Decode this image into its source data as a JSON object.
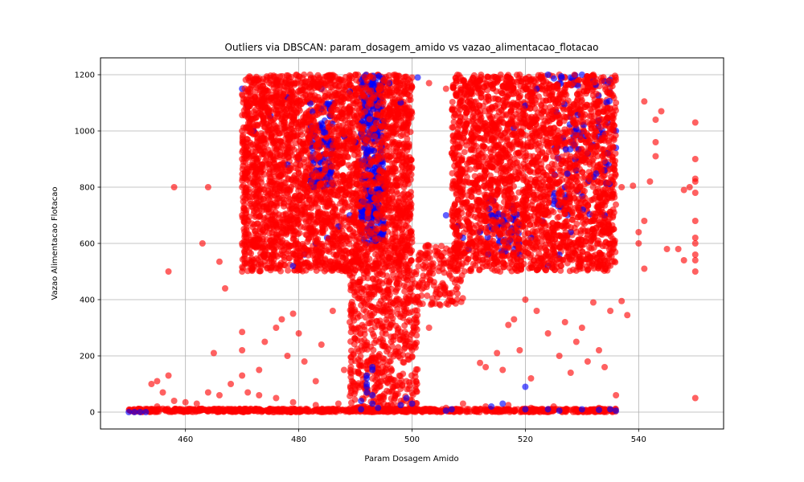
{
  "chart_data": {
    "type": "scatter",
    "title": "Outliers via DBSCAN: param_dosagem_amido vs vazao_alimentacao_flotacao",
    "xlabel": "Param Dosagem Amido",
    "ylabel": "Vazao Alimentacao Flotacao",
    "xlim": [
      445,
      555
    ],
    "ylim": [
      -60,
      1260
    ],
    "xticks": [
      460,
      480,
      500,
      520,
      540
    ],
    "yticks": [
      0,
      200,
      400,
      600,
      800,
      1000,
      1200
    ],
    "grid": true,
    "legend": "none",
    "colors": {
      "outlier": "#ff0000",
      "cluster": "#0000ff"
    },
    "series": [
      {
        "values": [
          [
            470,
            1130
          ],
          [
            472,
            1100
          ],
          [
            475,
            1180
          ],
          [
            478,
            1160
          ],
          [
            482,
            1200
          ],
          [
            486,
            1190
          ],
          [
            490,
            1200
          ],
          [
            494,
            1200
          ],
          [
            497,
            1200
          ],
          [
            500,
            1190
          ],
          [
            503,
            1170
          ],
          [
            506,
            1150
          ],
          [
            510,
            1140
          ],
          [
            513,
            1170
          ],
          [
            516,
            1160
          ],
          [
            519,
            1200
          ],
          [
            523,
            1190
          ],
          [
            526,
            1200
          ],
          [
            529,
            1180
          ],
          [
            532,
            1200
          ],
          [
            535,
            1170
          ],
          [
            536,
            1100
          ],
          [
            470,
            1000
          ],
          [
            470,
            900
          ],
          [
            470,
            800
          ],
          [
            470,
            700
          ],
          [
            470,
            600
          ],
          [
            470,
            500
          ],
          [
            470,
            285
          ],
          [
            470,
            220
          ],
          [
            470,
            130
          ],
          [
            471,
            70
          ],
          [
            473,
            60
          ],
          [
            476,
            50
          ],
          [
            479,
            35
          ],
          [
            483,
            25
          ],
          [
            487,
            30
          ],
          [
            491,
            20
          ],
          [
            495,
            30
          ],
          [
            498,
            40
          ],
          [
            502,
            10
          ],
          [
            506,
            15
          ],
          [
            509,
            30
          ],
          [
            513,
            20
          ],
          [
            517,
            25
          ],
          [
            521,
            15
          ],
          [
            525,
            20
          ],
          [
            529,
            10
          ],
          [
            533,
            15
          ],
          [
            536,
            60
          ],
          [
            537,
            395
          ],
          [
            538,
            345
          ],
          [
            537,
            800
          ],
          [
            539,
            805
          ],
          [
            540,
            600
          ],
          [
            540,
            640
          ],
          [
            541,
            680
          ],
          [
            541,
            510
          ],
          [
            542,
            820
          ],
          [
            543,
            1040
          ],
          [
            544,
            1070
          ],
          [
            543,
            960
          ],
          [
            543,
            910
          ],
          [
            545,
            580
          ],
          [
            547,
            580
          ],
          [
            548,
            540
          ],
          [
            548,
            790
          ],
          [
            549,
            800
          ],
          [
            550,
            1030
          ],
          [
            550,
            900
          ],
          [
            550,
            830
          ],
          [
            550,
            820
          ],
          [
            550,
            780
          ],
          [
            550,
            680
          ],
          [
            550,
            620
          ],
          [
            550,
            600
          ],
          [
            550,
            560
          ],
          [
            550,
            540
          ],
          [
            550,
            500
          ],
          [
            550,
            50
          ],
          [
            541,
            1105
          ],
          [
            458,
            800
          ],
          [
            464,
            800
          ],
          [
            457,
            500
          ],
          [
            463,
            600
          ],
          [
            466,
            535
          ],
          [
            467,
            440
          ],
          [
            465,
            210
          ],
          [
            457,
            130
          ],
          [
            455,
            110
          ],
          [
            454,
            100
          ],
          [
            456,
            70
          ],
          [
            458,
            40
          ],
          [
            460,
            35
          ],
          [
            462,
            30
          ],
          [
            464,
            70
          ],
          [
            466,
            60
          ],
          [
            468,
            100
          ],
          [
            455,
            20
          ],
          [
            451,
            10
          ],
          [
            452,
            5
          ],
          [
            453,
            8
          ],
          [
            456,
            12
          ],
          [
            459,
            10
          ],
          [
            461,
            8
          ],
          [
            465,
            10
          ],
          [
            468,
            10
          ],
          [
            473,
            10
          ],
          [
            477,
            10
          ],
          [
            480,
            8
          ],
          [
            485,
            10
          ],
          [
            490,
            12
          ],
          [
            495,
            10
          ],
          [
            499,
            8
          ],
          [
            504,
            10
          ],
          [
            508,
            10
          ],
          [
            512,
            8
          ],
          [
            516,
            10
          ],
          [
            520,
            12
          ],
          [
            524,
            10
          ],
          [
            528,
            8
          ],
          [
            532,
            10
          ],
          [
            473,
            150
          ],
          [
            474,
            250
          ],
          [
            476,
            300
          ],
          [
            477,
            330
          ],
          [
            478,
            200
          ],
          [
            479,
            350
          ],
          [
            480,
            280
          ],
          [
            481,
            180
          ],
          [
            483,
            110
          ],
          [
            484,
            240
          ],
          [
            486,
            360
          ],
          [
            488,
            150
          ],
          [
            489,
            320
          ],
          [
            490,
            260
          ],
          [
            491,
            380
          ],
          [
            492,
            400
          ],
          [
            493,
            200
          ],
          [
            494,
            310
          ],
          [
            495,
            430
          ],
          [
            496,
            180
          ],
          [
            497,
            270
          ],
          [
            498,
            350
          ],
          [
            499,
            110
          ],
          [
            500,
            220
          ],
          [
            501,
            410
          ],
          [
            503,
            300
          ],
          [
            505,
            380
          ],
          [
            507,
            395
          ],
          [
            512,
            175
          ],
          [
            513,
            160
          ],
          [
            515,
            210
          ],
          [
            516,
            150
          ],
          [
            517,
            310
          ],
          [
            518,
            330
          ],
          [
            519,
            220
          ],
          [
            520,
            400
          ],
          [
            521,
            120
          ],
          [
            522,
            360
          ],
          [
            524,
            280
          ],
          [
            526,
            200
          ],
          [
            527,
            320
          ],
          [
            528,
            140
          ],
          [
            529,
            250
          ],
          [
            530,
            300
          ],
          [
            531,
            180
          ],
          [
            532,
            390
          ],
          [
            533,
            220
          ],
          [
            534,
            160
          ],
          [
            535,
            360
          ]
        ]
      },
      {
        "values": [
          [
            470,
            1150
          ],
          [
            471,
            1085
          ],
          [
            472,
            1000
          ],
          [
            475,
            1055
          ],
          [
            478,
            1120
          ],
          [
            484,
            1150
          ],
          [
            486,
            1100
          ],
          [
            489,
            1140
          ],
          [
            492,
            1090
          ],
          [
            494,
            1190
          ],
          [
            496,
            1170
          ],
          [
            498,
            1100
          ],
          [
            501,
            1190
          ],
          [
            518,
            1010
          ],
          [
            520,
            1090
          ],
          [
            522,
            1150
          ],
          [
            524,
            1200
          ],
          [
            526,
            1170
          ],
          [
            528,
            1190
          ],
          [
            530,
            1200
          ],
          [
            532,
            1180
          ],
          [
            536,
            1000
          ],
          [
            536,
            940
          ],
          [
            534,
            860
          ],
          [
            478,
            880
          ],
          [
            480,
            900
          ],
          [
            483,
            860
          ],
          [
            486,
            940
          ],
          [
            488,
            980
          ],
          [
            490,
            960
          ],
          [
            492,
            920
          ],
          [
            493,
            880
          ],
          [
            494,
            840
          ],
          [
            495,
            800
          ],
          [
            493,
            760
          ],
          [
            491,
            720
          ],
          [
            489,
            700
          ],
          [
            487,
            660
          ],
          [
            485,
            620
          ],
          [
            483,
            600
          ],
          [
            481,
            560
          ],
          [
            479,
            520
          ],
          [
            506,
            700
          ],
          [
            508,
            660
          ],
          [
            509,
            620
          ],
          [
            510,
            580
          ],
          [
            512,
            640
          ],
          [
            514,
            700
          ],
          [
            515,
            660
          ],
          [
            517,
            600
          ],
          [
            519,
            560
          ],
          [
            521,
            620
          ],
          [
            523,
            680
          ],
          [
            525,
            740
          ],
          [
            527,
            800
          ],
          [
            529,
            860
          ],
          [
            531,
            920
          ],
          [
            533,
            980
          ],
          [
            534,
            700
          ],
          [
            528,
            640
          ],
          [
            526,
            560
          ],
          [
            524,
            520
          ],
          [
            450,
            0
          ],
          [
            451,
            0
          ],
          [
            452,
            0
          ],
          [
            453,
            0
          ],
          [
            491,
            10
          ],
          [
            491,
            40
          ],
          [
            492,
            70
          ],
          [
            492,
            100
          ],
          [
            492,
            130
          ],
          [
            493,
            160
          ],
          [
            493,
            150
          ],
          [
            492,
            120
          ],
          [
            492,
            90
          ],
          [
            493,
            60
          ],
          [
            493,
            30
          ],
          [
            494,
            15
          ],
          [
            498,
            25
          ],
          [
            499,
            50
          ],
          [
            500,
            30
          ],
          [
            506,
            5
          ],
          [
            507,
            10
          ],
          [
            514,
            20
          ],
          [
            516,
            30
          ],
          [
            520,
            90
          ],
          [
            520,
            10
          ],
          [
            524,
            10
          ],
          [
            526,
            5
          ],
          [
            530,
            10
          ],
          [
            533,
            8
          ],
          [
            535,
            10
          ],
          [
            536,
            5
          ]
        ]
      }
    ]
  }
}
